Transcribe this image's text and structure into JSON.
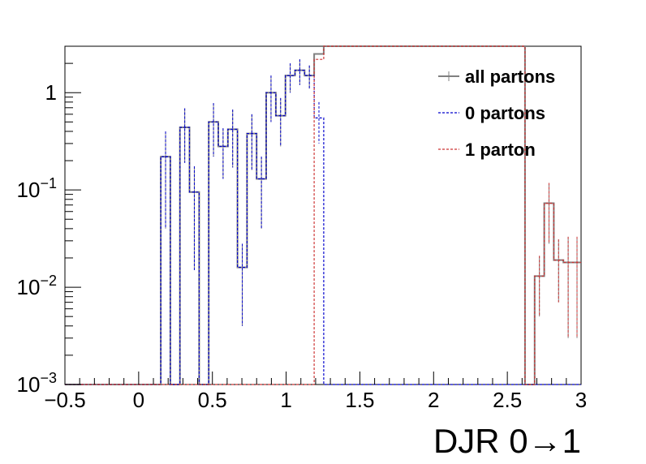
{
  "chart_data": {
    "type": "line",
    "xlabel": "DJR 0→1",
    "ylabel": "",
    "xlim": [
      -0.5,
      3.0
    ],
    "ylim": [
      0.001,
      3.0
    ],
    "yscale": "log",
    "grid": false,
    "legend_placement": "top-right",
    "x_ticks": [
      -0.5,
      0,
      0.5,
      1,
      1.5,
      2,
      2.5,
      3
    ],
    "x_tick_labels": [
      "−0.5",
      "0",
      "0.5",
      "1",
      "1.5",
      "2",
      "2.5",
      "3"
    ],
    "y_ticks": [
      {
        "value": 0.001,
        "base": "10",
        "exp": "−3"
      },
      {
        "value": 0.01,
        "base": "10",
        "exp": "−2"
      },
      {
        "value": 0.1,
        "base": "10",
        "exp": "−1"
      },
      {
        "value": 1,
        "base": "1",
        "exp": ""
      }
    ],
    "bin_edges": [
      -0.5,
      -0.435,
      -0.37,
      -0.305,
      -0.24,
      -0.175,
      -0.11,
      -0.045,
      0.02,
      0.085,
      0.15,
      0.215,
      0.28,
      0.345,
      0.41,
      0.475,
      0.54,
      0.605,
      0.67,
      0.735,
      0.8,
      0.865,
      0.93,
      0.995,
      1.06,
      1.125,
      1.19,
      1.255,
      1.32,
      1.385,
      1.45,
      1.515,
      1.58,
      1.645,
      1.71,
      1.775,
      1.84,
      1.905,
      1.97,
      2.035,
      2.1,
      2.165,
      2.23,
      2.295,
      2.36,
      2.425,
      2.49,
      2.555,
      2.62,
      2.685,
      2.75,
      2.815,
      2.88,
      2.945,
      3.0
    ],
    "series": [
      {
        "name": "all partons",
        "color": "#808080",
        "style": "solid",
        "values": [
          0.001,
          0.001,
          0.001,
          0.001,
          0.001,
          0.001,
          0.001,
          0.001,
          0.001,
          0.001,
          0.22,
          0.001,
          0.44,
          0.095,
          0.001,
          0.5,
          0.28,
          0.42,
          0.016,
          0.38,
          0.13,
          1.0,
          0.58,
          1.5,
          1.7,
          1.5,
          2.5,
          3.0,
          3.0,
          3.0,
          3.0,
          3.0,
          3.0,
          3.0,
          3.0,
          3.0,
          3.0,
          3.0,
          3.0,
          3.0,
          3.0,
          3.0,
          3.0,
          3.0,
          3.0,
          3.0,
          3.0,
          3.0,
          0.001,
          0.013,
          0.073,
          0.019,
          0.018,
          0.018
        ],
        "errors": [
          0,
          0,
          0,
          0,
          0,
          0,
          0,
          0,
          0,
          0,
          0.18,
          0,
          0.25,
          0.08,
          0,
          0.28,
          0.15,
          0.25,
          0.012,
          0.22,
          0.09,
          0.5,
          0.3,
          0.5,
          0.5,
          0.4,
          0,
          0,
          0,
          0,
          0,
          0,
          0,
          0,
          0,
          0,
          0,
          0,
          0,
          0,
          0,
          0,
          0,
          0,
          0,
          0,
          0,
          0,
          0,
          0.008,
          0.045,
          0.012,
          0.015,
          0.015
        ]
      },
      {
        "name": "0 partons",
        "color": "#0000cc",
        "style": "dashed",
        "values": [
          0.001,
          0.001,
          0.001,
          0.001,
          0.001,
          0.001,
          0.001,
          0.001,
          0.001,
          0.001,
          0.22,
          0.001,
          0.44,
          0.095,
          0.001,
          0.5,
          0.28,
          0.42,
          0.016,
          0.38,
          0.13,
          1.0,
          0.58,
          1.5,
          1.7,
          1.5,
          0.55,
          0.001,
          0.001,
          0.001,
          0.001,
          0.001,
          0.001,
          0.001,
          0.001,
          0.001,
          0.001,
          0.001,
          0.001,
          0.001,
          0.001,
          0.001,
          0.001,
          0.001,
          0.001,
          0.001,
          0.001,
          0.001,
          0.001,
          0.001,
          0.001,
          0.001,
          0.001,
          0.001
        ],
        "errors": [
          0,
          0,
          0,
          0,
          0,
          0,
          0,
          0,
          0,
          0,
          0.18,
          0,
          0.25,
          0.08,
          0,
          0.28,
          0.15,
          0.25,
          0.012,
          0.22,
          0.09,
          0.5,
          0.3,
          0.5,
          0.5,
          0.4,
          0.25,
          0,
          0,
          0,
          0,
          0,
          0,
          0,
          0,
          0,
          0,
          0,
          0,
          0,
          0,
          0,
          0,
          0,
          0,
          0,
          0,
          0,
          0,
          0,
          0,
          0,
          0,
          0
        ]
      },
      {
        "name": "1 parton",
        "color": "#cc3333",
        "style": "dashed",
        "values": [
          0.001,
          0.001,
          0.001,
          0.001,
          0.001,
          0.001,
          0.001,
          0.001,
          0.001,
          0.001,
          0.001,
          0.001,
          0.001,
          0.001,
          0.001,
          0.001,
          0.001,
          0.001,
          0.001,
          0.001,
          0.001,
          0.001,
          0.001,
          0.001,
          0.001,
          0.001,
          2.2,
          3.0,
          3.0,
          3.0,
          3.0,
          3.0,
          3.0,
          3.0,
          3.0,
          3.0,
          3.0,
          3.0,
          3.0,
          3.0,
          3.0,
          3.0,
          3.0,
          3.0,
          3.0,
          3.0,
          3.0,
          3.0,
          0.001,
          0.013,
          0.073,
          0.019,
          0.018,
          0.018
        ],
        "errors": [
          0,
          0,
          0,
          0,
          0,
          0,
          0,
          0,
          0,
          0,
          0,
          0,
          0,
          0,
          0,
          0,
          0,
          0,
          0,
          0,
          0,
          0,
          0,
          0,
          0,
          0,
          0,
          0,
          0,
          0,
          0,
          0,
          0,
          0,
          0,
          0,
          0,
          0,
          0,
          0,
          0,
          0,
          0,
          0,
          0,
          0,
          0,
          0,
          0,
          0.008,
          0.045,
          0.012,
          0.015,
          0.015
        ]
      }
    ]
  }
}
